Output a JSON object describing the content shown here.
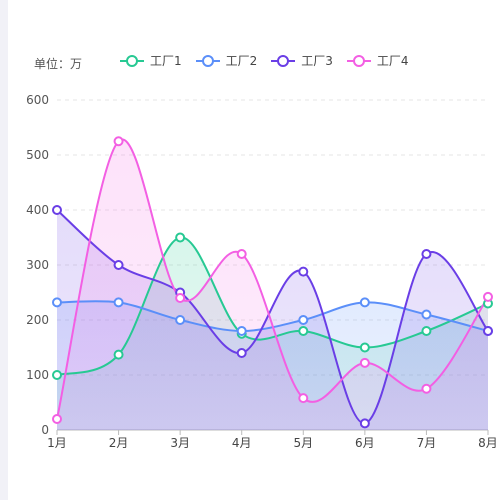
{
  "unit_label": "单位：万",
  "chart_data": {
    "type": "area",
    "categories": [
      "1月",
      "2月",
      "3月",
      "4月",
      "5月",
      "6月",
      "7月",
      "8月"
    ],
    "ylim": [
      0,
      600
    ],
    "yticks": [
      0,
      100,
      200,
      300,
      400,
      500,
      600
    ],
    "grid": true,
    "legend_position": "top",
    "series": [
      {
        "name": "工厂1",
        "color": "#27c993",
        "values": [
          100,
          137,
          350,
          175,
          180,
          150,
          180,
          230
        ]
      },
      {
        "name": "工厂2",
        "color": "#5b8ff9",
        "values": [
          232,
          232,
          200,
          180,
          200,
          232,
          210,
          180
        ]
      },
      {
        "name": "工厂3",
        "color": "#6a3ee6",
        "values": [
          400,
          300,
          250,
          140,
          288,
          12,
          320,
          180
        ]
      },
      {
        "name": "工厂4",
        "color": "#f35fe3",
        "values": [
          20,
          525,
          240,
          320,
          58,
          122,
          75,
          242
        ]
      }
    ]
  }
}
